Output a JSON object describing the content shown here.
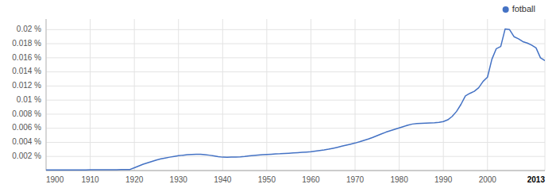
{
  "chart_data": {
    "type": "line",
    "x": [
      1900,
      1901,
      1902,
      1903,
      1904,
      1905,
      1906,
      1907,
      1908,
      1909,
      1910,
      1911,
      1912,
      1913,
      1914,
      1915,
      1916,
      1917,
      1918,
      1919,
      1920,
      1921,
      1922,
      1923,
      1924,
      1925,
      1926,
      1927,
      1928,
      1929,
      1930,
      1931,
      1932,
      1933,
      1934,
      1935,
      1936,
      1937,
      1938,
      1939,
      1940,
      1941,
      1942,
      1943,
      1944,
      1945,
      1946,
      1947,
      1948,
      1949,
      1950,
      1951,
      1952,
      1953,
      1954,
      1955,
      1956,
      1957,
      1958,
      1959,
      1960,
      1961,
      1962,
      1963,
      1964,
      1965,
      1966,
      1967,
      1968,
      1969,
      1970,
      1971,
      1972,
      1973,
      1974,
      1975,
      1976,
      1977,
      1978,
      1979,
      1980,
      1981,
      1982,
      1983,
      1984,
      1985,
      1986,
      1987,
      1988,
      1989,
      1990,
      1991,
      1992,
      1993,
      1994,
      1995,
      1996,
      1997,
      1998,
      1999,
      2000,
      2001,
      2002,
      2003,
      2004,
      2005,
      2006,
      2007,
      2008,
      2009,
      2010,
      2011,
      2012,
      2013
    ],
    "series": [
      {
        "name": "fotball",
        "color": "#4472C4",
        "values": [
          8e-05,
          8e-05,
          8e-05,
          8e-05,
          8e-05,
          8e-05,
          8e-05,
          9e-05,
          9e-05,
          9e-05,
          0.0001,
          0.0001,
          0.00011,
          0.00011,
          0.00011,
          0.00012,
          0.00012,
          0.00013,
          0.00013,
          0.00015,
          0.0004,
          0.00065,
          0.0009,
          0.0011,
          0.0013,
          0.0015,
          0.00165,
          0.00178,
          0.0019,
          0.002,
          0.0021,
          0.00218,
          0.00224,
          0.00228,
          0.0023,
          0.00232,
          0.00226,
          0.00218,
          0.00208,
          0.00198,
          0.0019,
          0.00188,
          0.0019,
          0.00192,
          0.00195,
          0.002,
          0.00208,
          0.00215,
          0.0022,
          0.00225,
          0.00228,
          0.00232,
          0.00236,
          0.00238,
          0.00242,
          0.00246,
          0.0025,
          0.00254,
          0.00258,
          0.00263,
          0.00268,
          0.00275,
          0.00283,
          0.00292,
          0.00303,
          0.00316,
          0.0033,
          0.00345,
          0.0036,
          0.00375,
          0.0039,
          0.00408,
          0.00428,
          0.00448,
          0.0047,
          0.00495,
          0.0052,
          0.00545,
          0.00565,
          0.00585,
          0.00605,
          0.00625,
          0.00645,
          0.0066,
          0.00668,
          0.0067,
          0.00672,
          0.00675,
          0.00678,
          0.00685,
          0.00695,
          0.0072,
          0.00768,
          0.0084,
          0.0094,
          0.0106,
          0.01095,
          0.01125,
          0.01175,
          0.01265,
          0.01325,
          0.0158,
          0.0173,
          0.0176,
          0.0201,
          0.02,
          0.019,
          0.0187,
          0.0183,
          0.0181,
          0.0178,
          0.0174,
          0.016,
          0.0156
        ]
      }
    ],
    "xlim": [
      1900,
      2013
    ],
    "xticks": [
      1900,
      1910,
      1920,
      1930,
      1940,
      1950,
      1960,
      1970,
      1980,
      1990,
      2000,
      2013
    ],
    "ylim": [
      0,
      0.0215
    ],
    "yticks": [
      {
        "value": 0.002,
        "label": "0.002 %"
      },
      {
        "value": 0.004,
        "label": "0.004 %"
      },
      {
        "value": 0.006,
        "label": "0.006 %"
      },
      {
        "value": 0.008,
        "label": "0.008 %"
      },
      {
        "value": 0.01,
        "label": "0.01 %"
      },
      {
        "value": 0.012,
        "label": "0.012 %"
      },
      {
        "value": 0.014,
        "label": "0.014 %"
      },
      {
        "value": 0.016,
        "label": "0.016 %"
      },
      {
        "value": 0.018,
        "label": "0.018 %"
      },
      {
        "value": 0.02,
        "label": "0.02 %"
      }
    ],
    "grid": true,
    "legend": "upper right"
  }
}
